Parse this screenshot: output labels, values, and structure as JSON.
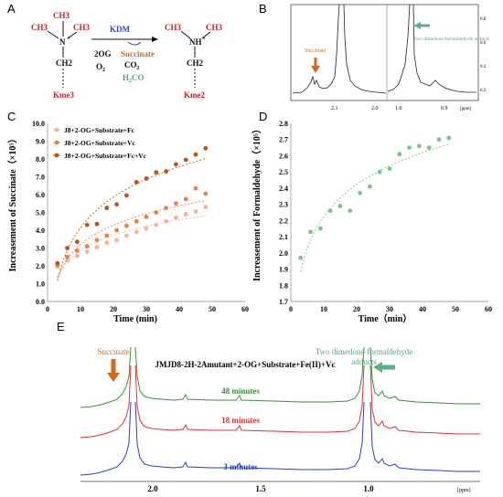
{
  "panel_a": {
    "letter": "A",
    "left": {
      "ch3_left": "CH3",
      "ch3_top": "CH3",
      "ch3_right": "CH3",
      "n": "N",
      "n_charge": "+",
      "ch2": "CH2",
      "label": "Kme3"
    },
    "enzyme": "KDM",
    "reagents": [
      "2OG",
      "O",
      "2"
    ],
    "products": {
      "succinate": "Succinate",
      "co2": "CO",
      "co2_sub": "2",
      "h2co": "H",
      "h2co_sub": "2",
      "h2co_rest": "CO"
    },
    "right": {
      "ch3_left": "CH3",
      "ch3_right": "CH3",
      "nh": "NH",
      "nh_charge": "+",
      "ch2": "CH2",
      "label": "Kme2"
    },
    "colors": {
      "red": "#c0232a",
      "blue": "#2e4e9e",
      "orange": "#c8702a",
      "teal": "#4fa88a"
    }
  },
  "panel_b": {
    "letter": "B",
    "succinate_label": "Succinate",
    "adduct_label": "Two dimedone-formaldehyde adducts",
    "xticks_left": [
      "2.1",
      "2.0"
    ],
    "xticks_right": [
      "1.0",
      "0.9"
    ],
    "unit": "[ppm]",
    "yticks": [
      "0.2",
      "0.4",
      "0.6",
      "0.8"
    ]
  },
  "panel_e": {
    "letter": "E",
    "succinate_label": "Succinate",
    "adduct_label_1": "Two dimedone-formaldehyde",
    "adduct_label_2": "adducts",
    "condition": "JMJD8-2H-2Amutant+2-OG+Substrate+Fe(II)+Vc",
    "traces": [
      {
        "label": "48 minutes",
        "color": "#3a8f3e"
      },
      {
        "label": "18 minutes",
        "color": "#e03030"
      },
      {
        "label": "3  minutes",
        "color": "#2d3fc8"
      }
    ],
    "xticks": [
      "2.0",
      "1.5",
      "1.0"
    ],
    "unit": "[ppm]"
  },
  "chart_data": [
    {
      "panel": "C",
      "type": "scatter",
      "xlabel": "Time (min)",
      "ylabel": "Increasement of Succinate（×10⁵）",
      "xlim": [
        0,
        60
      ],
      "ylim": [
        0,
        10
      ],
      "xticks": [
        "0",
        "10",
        "20",
        "30",
        "40",
        "50",
        "60"
      ],
      "yticks": [
        "0.0",
        "1.0",
        "2.0",
        "3.0",
        "4.0",
        "5.0",
        "6.0",
        "7.0",
        "8.0",
        "9.0",
        "10.0"
      ],
      "legend_position": "top-left",
      "series": [
        {
          "name": "J8+2-OG+Substrate+Fc",
          "color": "#f4b39c",
          "x": [
            3,
            6,
            9,
            12,
            15,
            18,
            21,
            24,
            27,
            30,
            33,
            36,
            39,
            42,
            45,
            48
          ],
          "y": [
            1.95,
            2.3,
            2.55,
            2.8,
            3.05,
            3.3,
            3.45,
            3.7,
            3.9,
            4.1,
            4.3,
            4.5,
            4.7,
            4.9,
            5.05,
            5.3
          ]
        },
        {
          "name": "J8+2-OG+Substrate+Vc",
          "color": "#e8824a",
          "x": [
            3,
            6,
            9,
            12,
            15,
            18,
            21,
            24,
            27,
            30,
            33,
            36,
            39,
            42,
            45,
            48
          ],
          "y": [
            2.05,
            2.5,
            2.85,
            3.1,
            3.45,
            3.7,
            4.0,
            4.25,
            4.5,
            4.75,
            5.0,
            5.25,
            5.5,
            5.75,
            6.35,
            6.05
          ]
        },
        {
          "name": "J8+2-OG+Substrate+Fc+Vc",
          "color": "#c4511c",
          "x": [
            3,
            6,
            9,
            12,
            15,
            18,
            21,
            24,
            27,
            30,
            33,
            36,
            39,
            42,
            45,
            48
          ],
          "y": [
            2.15,
            3.0,
            3.35,
            4.3,
            4.35,
            5.25,
            5.45,
            5.95,
            6.7,
            6.9,
            7.25,
            7.3,
            7.7,
            7.95,
            8.25,
            8.6
          ]
        }
      ]
    },
    {
      "panel": "D",
      "type": "scatter",
      "xlabel": "Time（min）",
      "ylabel": "Increasement of Formaldehyde（×10⁵）",
      "xlim": [
        0,
        60
      ],
      "ylim": [
        1.7,
        2.8
      ],
      "xticks": [
        "0",
        "10",
        "20",
        "30",
        "40",
        "50",
        "60"
      ],
      "yticks": [
        "1.7",
        "1.8",
        "1.9",
        "2.0",
        "2.1",
        "2.2",
        "2.3",
        "2.4",
        "2.5",
        "2.6",
        "2.7",
        "2.8"
      ],
      "series": [
        {
          "name": "",
          "color": "#7cc48a",
          "x": [
            3,
            6,
            9,
            12,
            15,
            18,
            21,
            24,
            27,
            30,
            33,
            36,
            39,
            42,
            45,
            48
          ],
          "y": [
            1.97,
            2.13,
            2.15,
            2.26,
            2.29,
            2.26,
            2.37,
            2.41,
            2.5,
            2.52,
            2.61,
            2.65,
            2.66,
            2.65,
            2.7,
            2.71
          ]
        }
      ]
    }
  ]
}
